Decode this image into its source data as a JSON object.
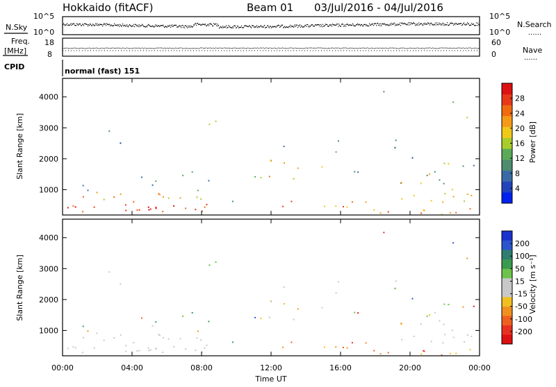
{
  "header": {
    "radar": "Hokkaido (fitACF)",
    "beam": "Beam 01",
    "date_range": "03/Jul/2016 - 04/Jul/2016"
  },
  "status_panels": {
    "nsky_label": "N.Sky",
    "nsearch_label": "N.Search",
    "freq_label_1": "Freq.",
    "freq_label_2": "[MHz]",
    "nave_label": "Nave",
    "cpid_label": "CPID",
    "cpid_value": "normal (fast) 151",
    "left_ticks_noise": [
      "10^5",
      "10^0"
    ],
    "right_ticks_noise": [
      "10^5",
      "10^0"
    ],
    "left_ticks_freq": [
      "18",
      "8"
    ],
    "right_ticks_freq": [
      "60",
      "0"
    ],
    "legend_dots": "......"
  },
  "chart_data": [
    {
      "type": "heatmap",
      "name": "power",
      "ylabel": "Slant Range [km]",
      "xlabel": "",
      "yticks": [
        1000,
        2000,
        3000,
        4000
      ],
      "ylim": [
        180,
        4600
      ],
      "xlim": [
        0,
        24
      ],
      "colorbar_label": "Power [dB]",
      "colorbar_ticks": [
        "4",
        "8",
        "12",
        "16",
        "20",
        "24",
        "28"
      ],
      "colorbar_colors": [
        "#0022ee",
        "#2244bb",
        "#3a6aa6",
        "#4f8b6e",
        "#5aaa5a",
        "#a8cc2a",
        "#f0c81a",
        "#f59a18",
        "#f06a10",
        "#e8381a",
        "#dd1111"
      ]
    },
    {
      "type": "heatmap",
      "name": "velocity",
      "ylabel": "Slant Range [km]",
      "xlabel": "Time UT",
      "xticks": [
        "00:00",
        "04:00",
        "08:00",
        "12:00",
        "16:00",
        "20:00",
        "00:00"
      ],
      "yticks": [
        1000,
        2000,
        3000,
        4000
      ],
      "ylim": [
        180,
        4600
      ],
      "xlim": [
        0,
        24
      ],
      "colorbar_label": "Velocity [m s⁻¹]",
      "colorbar_ticks": [
        "200",
        "100",
        "50",
        "15",
        "-15",
        "-50",
        "-100",
        "-200"
      ],
      "colorbar_colors": [
        "#1a33cc",
        "#2a55cc",
        "#2e7d6e",
        "#3a9a50",
        "#6cc24a",
        "#c8c8c8",
        "#c8c8c8",
        "#f0c020",
        "#f09020",
        "#ee6020",
        "#e83020",
        "#dd1111"
      ]
    }
  ]
}
